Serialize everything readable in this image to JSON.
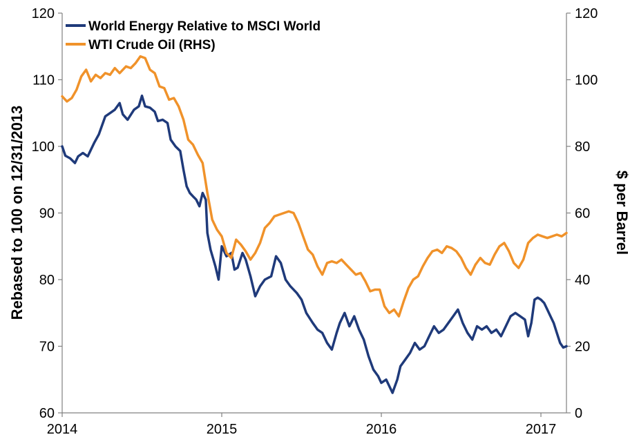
{
  "chart_data": {
    "type": "line",
    "title": "",
    "xlabel": "",
    "ylabel": "Rebased to 100 on 12/31/2013",
    "y2label": "$ per Barrel",
    "xlim": [
      2014.0,
      2017.16
    ],
    "x_ticks": [
      2014,
      2015,
      2016,
      2017
    ],
    "ylim": [
      60,
      120
    ],
    "y_ticks": [
      60,
      70,
      80,
      90,
      100,
      110,
      120
    ],
    "y2lim": [
      0,
      120
    ],
    "y2_ticks": [
      0,
      20,
      40,
      60,
      80,
      100,
      120
    ],
    "grid": false,
    "legend_position": "top-left",
    "series": [
      {
        "name": "World Energy Relative to MSCI World",
        "axis": "left",
        "color": "#1f3a7a",
        "points": [
          [
            2014.0,
            100.0
          ],
          [
            2014.02,
            98.6
          ],
          [
            2014.05,
            98.2
          ],
          [
            2014.08,
            97.5
          ],
          [
            2014.1,
            98.5
          ],
          [
            2014.13,
            99.0
          ],
          [
            2014.16,
            98.5
          ],
          [
            2014.2,
            100.5
          ],
          [
            2014.23,
            101.8
          ],
          [
            2014.27,
            104.5
          ],
          [
            2014.3,
            105.0
          ],
          [
            2014.33,
            105.5
          ],
          [
            2014.36,
            106.5
          ],
          [
            2014.38,
            104.8
          ],
          [
            2014.41,
            104.0
          ],
          [
            2014.45,
            105.5
          ],
          [
            2014.48,
            106.0
          ],
          [
            2014.5,
            107.6
          ],
          [
            2014.52,
            106.0
          ],
          [
            2014.55,
            105.8
          ],
          [
            2014.58,
            105.2
          ],
          [
            2014.6,
            103.8
          ],
          [
            2014.63,
            104.0
          ],
          [
            2014.66,
            103.5
          ],
          [
            2014.68,
            101.0
          ],
          [
            2014.71,
            100.0
          ],
          [
            2014.74,
            99.3
          ],
          [
            2014.76,
            96.5
          ],
          [
            2014.78,
            94.0
          ],
          [
            2014.8,
            93.0
          ],
          [
            2014.82,
            92.5
          ],
          [
            2014.84,
            92.0
          ],
          [
            2014.86,
            91.0
          ],
          [
            2014.88,
            93.0
          ],
          [
            2014.9,
            92.0
          ],
          [
            2014.91,
            87.0
          ],
          [
            2014.93,
            84.5
          ],
          [
            2014.96,
            82.0
          ],
          [
            2014.98,
            80.0
          ],
          [
            2015.0,
            85.0
          ],
          [
            2015.03,
            83.5
          ],
          [
            2015.06,
            84.0
          ],
          [
            2015.08,
            81.5
          ],
          [
            2015.1,
            81.8
          ],
          [
            2015.13,
            84.0
          ],
          [
            2015.15,
            83.0
          ],
          [
            2015.18,
            80.5
          ],
          [
            2015.21,
            77.5
          ],
          [
            2015.24,
            79.0
          ],
          [
            2015.27,
            80.0
          ],
          [
            2015.31,
            80.5
          ],
          [
            2015.34,
            83.5
          ],
          [
            2015.37,
            82.5
          ],
          [
            2015.4,
            80.0
          ],
          [
            2015.43,
            79.0
          ],
          [
            2015.47,
            78.0
          ],
          [
            2015.5,
            77.0
          ],
          [
            2015.53,
            75.0
          ],
          [
            2015.57,
            73.5
          ],
          [
            2015.6,
            72.5
          ],
          [
            2015.63,
            72.0
          ],
          [
            2015.66,
            70.5
          ],
          [
            2015.69,
            69.5
          ],
          [
            2015.72,
            72.0
          ],
          [
            2015.74,
            73.5
          ],
          [
            2015.77,
            75.0
          ],
          [
            2015.8,
            73.0
          ],
          [
            2015.83,
            74.5
          ],
          [
            2015.86,
            72.5
          ],
          [
            2015.89,
            71.0
          ],
          [
            2015.92,
            68.5
          ],
          [
            2015.95,
            66.5
          ],
          [
            2015.98,
            65.5
          ],
          [
            2016.0,
            64.5
          ],
          [
            2016.03,
            65.0
          ],
          [
            2016.05,
            64.0
          ],
          [
            2016.07,
            63.0
          ],
          [
            2016.1,
            65.0
          ],
          [
            2016.12,
            67.0
          ],
          [
            2016.15,
            68.0
          ],
          [
            2016.18,
            69.0
          ],
          [
            2016.21,
            70.5
          ],
          [
            2016.24,
            69.5
          ],
          [
            2016.27,
            70.0
          ],
          [
            2016.3,
            71.5
          ],
          [
            2016.33,
            73.0
          ],
          [
            2016.36,
            72.0
          ],
          [
            2016.39,
            72.5
          ],
          [
            2016.42,
            73.5
          ],
          [
            2016.45,
            74.5
          ],
          [
            2016.48,
            75.5
          ],
          [
            2016.51,
            73.5
          ],
          [
            2016.54,
            72.0
          ],
          [
            2016.57,
            71.0
          ],
          [
            2016.6,
            73.0
          ],
          [
            2016.63,
            72.5
          ],
          [
            2016.66,
            73.0
          ],
          [
            2016.69,
            72.0
          ],
          [
            2016.72,
            72.5
          ],
          [
            2016.75,
            71.5
          ],
          [
            2016.78,
            73.0
          ],
          [
            2016.81,
            74.5
          ],
          [
            2016.84,
            75.0
          ],
          [
            2016.87,
            74.5
          ],
          [
            2016.9,
            74.0
          ],
          [
            2016.92,
            71.5
          ],
          [
            2016.94,
            73.5
          ],
          [
            2016.96,
            77.0
          ],
          [
            2016.98,
            77.3
          ],
          [
            2017.0,
            77.0
          ],
          [
            2017.02,
            76.5
          ],
          [
            2017.04,
            75.5
          ],
          [
            2017.06,
            74.5
          ],
          [
            2017.08,
            73.5
          ],
          [
            2017.1,
            72.0
          ],
          [
            2017.12,
            70.5
          ],
          [
            2017.14,
            69.8
          ],
          [
            2017.16,
            70.0
          ]
        ]
      },
      {
        "name": "WTI Crude Oil (RHS)",
        "axis": "right",
        "color": "#f0922a",
        "points": [
          [
            2014.0,
            95.0
          ],
          [
            2014.03,
            93.5
          ],
          [
            2014.06,
            94.5
          ],
          [
            2014.09,
            97.0
          ],
          [
            2014.12,
            101.0
          ],
          [
            2014.15,
            103.0
          ],
          [
            2014.18,
            99.5
          ],
          [
            2014.21,
            101.5
          ],
          [
            2014.24,
            100.5
          ],
          [
            2014.27,
            102.0
          ],
          [
            2014.3,
            101.5
          ],
          [
            2014.33,
            103.5
          ],
          [
            2014.36,
            102.0
          ],
          [
            2014.4,
            104.0
          ],
          [
            2014.43,
            103.5
          ],
          [
            2014.46,
            105.0
          ],
          [
            2014.49,
            107.0
          ],
          [
            2014.52,
            106.5
          ],
          [
            2014.55,
            103.0
          ],
          [
            2014.58,
            102.0
          ],
          [
            2014.61,
            98.0
          ],
          [
            2014.64,
            97.5
          ],
          [
            2014.67,
            94.0
          ],
          [
            2014.7,
            94.5
          ],
          [
            2014.73,
            92.0
          ],
          [
            2014.76,
            88.0
          ],
          [
            2014.79,
            82.0
          ],
          [
            2014.82,
            80.5
          ],
          [
            2014.85,
            77.5
          ],
          [
            2014.88,
            75.0
          ],
          [
            2014.91,
            66.0
          ],
          [
            2014.94,
            58.0
          ],
          [
            2014.97,
            55.0
          ],
          [
            2015.0,
            53.0
          ],
          [
            2015.03,
            48.0
          ],
          [
            2015.06,
            46.5
          ],
          [
            2015.09,
            52.0
          ],
          [
            2015.12,
            50.5
          ],
          [
            2015.15,
            48.5
          ],
          [
            2015.18,
            46.0
          ],
          [
            2015.21,
            48.0
          ],
          [
            2015.24,
            51.0
          ],
          [
            2015.27,
            55.5
          ],
          [
            2015.3,
            57.0
          ],
          [
            2015.33,
            59.0
          ],
          [
            2015.36,
            59.5
          ],
          [
            2015.39,
            60.0
          ],
          [
            2015.42,
            60.5
          ],
          [
            2015.45,
            60.0
          ],
          [
            2015.48,
            57.0
          ],
          [
            2015.51,
            53.0
          ],
          [
            2015.54,
            49.0
          ],
          [
            2015.57,
            47.5
          ],
          [
            2015.6,
            44.0
          ],
          [
            2015.63,
            41.5
          ],
          [
            2015.66,
            45.0
          ],
          [
            2015.69,
            45.5
          ],
          [
            2015.72,
            45.0
          ],
          [
            2015.75,
            46.0
          ],
          [
            2015.78,
            44.5
          ],
          [
            2015.81,
            43.0
          ],
          [
            2015.84,
            41.5
          ],
          [
            2015.87,
            42.0
          ],
          [
            2015.9,
            39.5
          ],
          [
            2015.93,
            36.5
          ],
          [
            2015.96,
            37.0
          ],
          [
            2015.99,
            37.0
          ],
          [
            2016.02,
            32.0
          ],
          [
            2016.05,
            30.0
          ],
          [
            2016.08,
            31.0
          ],
          [
            2016.11,
            29.0
          ],
          [
            2016.14,
            33.5
          ],
          [
            2016.17,
            37.5
          ],
          [
            2016.2,
            40.0
          ],
          [
            2016.23,
            41.0
          ],
          [
            2016.26,
            44.0
          ],
          [
            2016.29,
            46.5
          ],
          [
            2016.32,
            48.5
          ],
          [
            2016.35,
            49.0
          ],
          [
            2016.38,
            48.0
          ],
          [
            2016.41,
            50.0
          ],
          [
            2016.44,
            49.5
          ],
          [
            2016.47,
            48.5
          ],
          [
            2016.5,
            46.5
          ],
          [
            2016.53,
            43.5
          ],
          [
            2016.56,
            41.5
          ],
          [
            2016.59,
            44.5
          ],
          [
            2016.62,
            46.5
          ],
          [
            2016.65,
            45.0
          ],
          [
            2016.68,
            44.5
          ],
          [
            2016.71,
            47.5
          ],
          [
            2016.74,
            50.0
          ],
          [
            2016.77,
            51.0
          ],
          [
            2016.8,
            48.5
          ],
          [
            2016.83,
            45.0
          ],
          [
            2016.86,
            43.5
          ],
          [
            2016.89,
            46.0
          ],
          [
            2016.92,
            51.0
          ],
          [
            2016.95,
            52.5
          ],
          [
            2016.98,
            53.5
          ],
          [
            2017.01,
            53.0
          ],
          [
            2017.04,
            52.5
          ],
          [
            2017.07,
            53.0
          ],
          [
            2017.1,
            53.5
          ],
          [
            2017.13,
            53.0
          ],
          [
            2017.16,
            54.0
          ]
        ]
      }
    ]
  }
}
